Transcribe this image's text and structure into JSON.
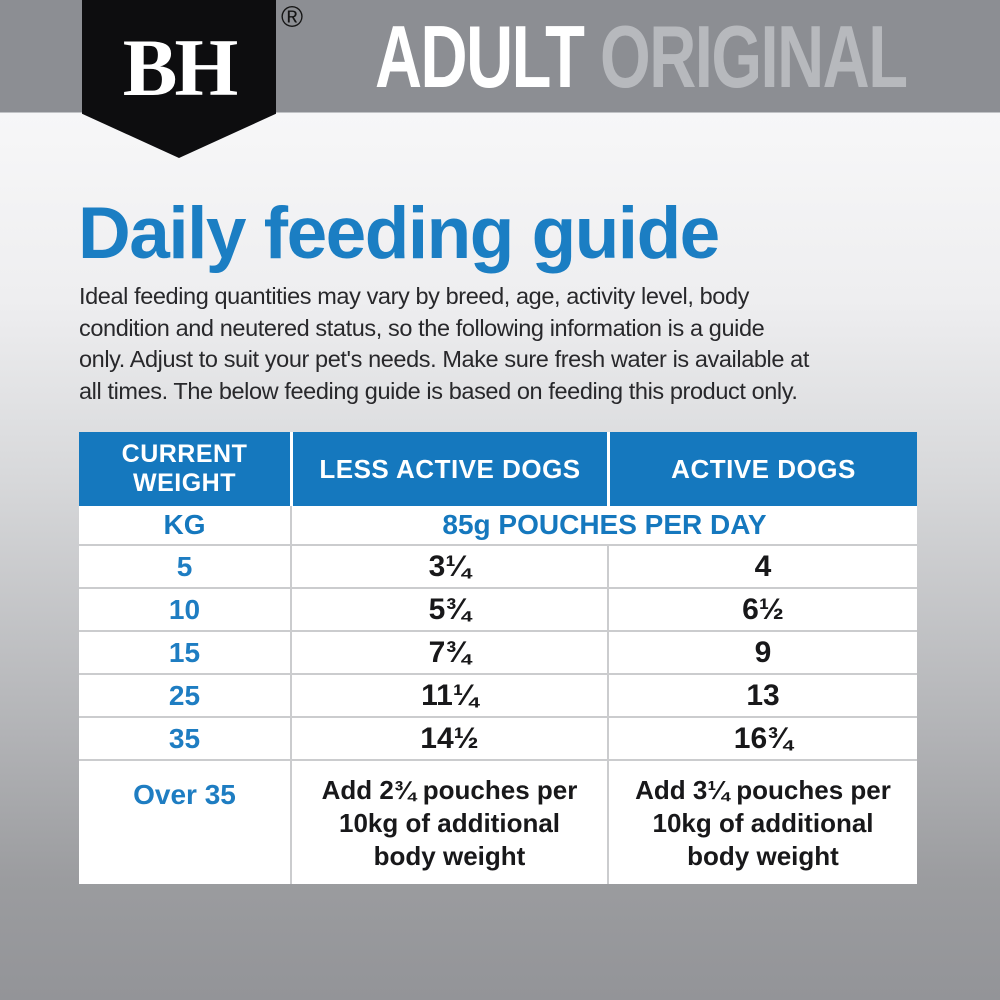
{
  "banner": {
    "logo_text": "BH",
    "registered_mark": "®",
    "title_primary": "ADULT ",
    "title_secondary": "ORIGINAL"
  },
  "intro": {
    "heading": "Daily feeding guide",
    "body": "Ideal feeding quantities may vary by breed, age, activity level, body\ncondition and neutered status, so the following information is a guide\nonly. Adjust to suit your pet's needs. Make sure fresh water is available at\nall times. The below feeding guide is based on feeding this product only."
  },
  "table": {
    "headers": {
      "current_weight": "CURRENT\nWEIGHT",
      "less_active": "LESS ACTIVE DOGS",
      "active": "ACTIVE DOGS"
    },
    "unit_row": {
      "weight_unit": "KG",
      "serving_unit": "85g POUCHES PER DAY"
    },
    "rows": [
      {
        "weight": "5",
        "less_active": "3¼",
        "active": "4"
      },
      {
        "weight": "10",
        "less_active": "5¾",
        "active": "6½"
      },
      {
        "weight": "15",
        "less_active": "7¾",
        "active": "9"
      },
      {
        "weight": "25",
        "less_active": "11¼",
        "active": "13"
      },
      {
        "weight": "35",
        "less_active": "14½",
        "active": "16¾"
      }
    ],
    "over_row": {
      "weight": "Over 35",
      "less_active": "Add 2¾ pouches per\n10kg of additional\nbody weight",
      "active": "Add 3¼ pouches per\n10kg of additional\nbody weight"
    }
  },
  "colors": {
    "accent_blue": "#1578be",
    "heading_blue": "#1b7ec3",
    "banner_gray": "#8c8e93",
    "secondary_text_gray": "#b7b9bd",
    "badge_black": "#0d0d0f",
    "row_divider": "#cbccce",
    "body_text": "#28282b"
  }
}
